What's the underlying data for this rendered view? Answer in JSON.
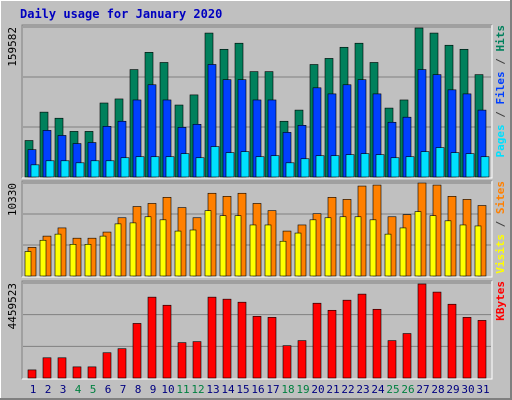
{
  "chart_data": [
    {
      "type": "bar",
      "title": "Daily usage for January 2020",
      "ylim": [
        0,
        159582
      ],
      "yticks": [
        159582
      ],
      "grid": true,
      "legend_separator": " / ",
      "series": [
        {
          "name": "Hits",
          "color": "#00805c",
          "values": [
            38820,
            69010,
            62540,
            48520,
            48520,
            78710,
            83030,
            114300,
            132630,
            121850,
            76560,
            87340,
            153120,
            135870,
            142330,
            112140,
            112140,
            59310,
            71170,
            119690,
            126160,
            138020,
            142330,
            121850,
            73320,
            81950,
            158510,
            153120,
            140180,
            135870,
            108910
          ]
        },
        {
          "name": "Files",
          "color": "#0040ff",
          "values": [
            29110,
            49600,
            44210,
            35580,
            36660,
            53910,
            59310,
            81950,
            98130,
            81950,
            52840,
            56070,
            119690,
            103520,
            103520,
            81950,
            81950,
            47450,
            54990,
            94890,
            88420,
            98130,
            103520,
            88420,
            58230,
            63620,
            114300,
            108910,
            92730,
            88420,
            71170
          ]
        },
        {
          "name": "Pages",
          "color": "#00e0ff",
          "values": [
            12940,
            17250,
            17250,
            15100,
            17250,
            17250,
            20490,
            21570,
            21570,
            21570,
            24800,
            20490,
            32350,
            25880,
            26960,
            21570,
            22640,
            15100,
            19410,
            22640,
            22640,
            23720,
            24800,
            23720,
            20490,
            21570,
            26960,
            31270,
            25880,
            24800,
            21570
          ]
        }
      ]
    },
    {
      "type": "bar",
      "ylim": [
        0,
        10330
      ],
      "yticks": [
        10330
      ],
      "grid": true,
      "legend_separator": " / ",
      "series": [
        {
          "name": "Sites",
          "color": "#ff8000",
          "values": [
            3180,
            4430,
            5340,
            4200,
            4200,
            4880,
            6470,
            7720,
            8060,
            8740,
            7600,
            6470,
            9190,
            8850,
            9190,
            8060,
            7260,
            4990,
            5670,
            6920,
            8740,
            8510,
            9990,
            10100,
            6580,
            6810,
            10330,
            10100,
            8850,
            8510,
            7830
          ]
        },
        {
          "name": "Visits",
          "color": "#ffff00",
          "values": [
            2720,
            3970,
            4650,
            3520,
            3520,
            4430,
            5790,
            5900,
            6580,
            6240,
            4990,
            5110,
            7260,
            6700,
            6700,
            5670,
            5670,
            3860,
            4770,
            6240,
            6470,
            6580,
            6580,
            6240,
            4650,
            5340,
            7150,
            6700,
            6130,
            5670,
            5560
          ]
        }
      ]
    },
    {
      "type": "bar",
      "ylim": [
        0,
        4459523
      ],
      "yticks": [
        4459523
      ],
      "grid": true,
      "categories": [
        "1",
        "2",
        "3",
        "4",
        "5",
        "6",
        "7",
        "8",
        "9",
        "10",
        "11",
        "12",
        "13",
        "14",
        "15",
        "16",
        "17",
        "18",
        "19",
        "20",
        "21",
        "22",
        "23",
        "24",
        "25",
        "26",
        "27",
        "28",
        "29",
        "30",
        "31"
      ],
      "category_colors": [
        "#000080",
        "#000080",
        "#000080",
        "#008040",
        "#008040",
        "#000080",
        "#000080",
        "#000080",
        "#000080",
        "#000080",
        "#008040",
        "#008040",
        "#000080",
        "#000080",
        "#000080",
        "#000080",
        "#000080",
        "#008040",
        "#008040",
        "#000080",
        "#000080",
        "#000080",
        "#000080",
        "#000080",
        "#008040",
        "#008040",
        "#000080",
        "#000080",
        "#000080",
        "#000080",
        "#000080"
      ],
      "series": [
        {
          "name": "KBytes",
          "color": "#ff0000",
          "values": [
            379500,
            948800,
            948800,
            521900,
            521900,
            1186000,
            1375800,
            2561900,
            3795400,
            3415800,
            1660500,
            1707900,
            3795400,
            3700500,
            3558200,
            2894000,
            2846500,
            1518100,
            1755400,
            3510700,
            3178600,
            3653000,
            3937700,
            3226100,
            1755400,
            2087400,
            4412100,
            4032600,
            3463300,
            2846500,
            2704200
          ]
        }
      ]
    }
  ]
}
